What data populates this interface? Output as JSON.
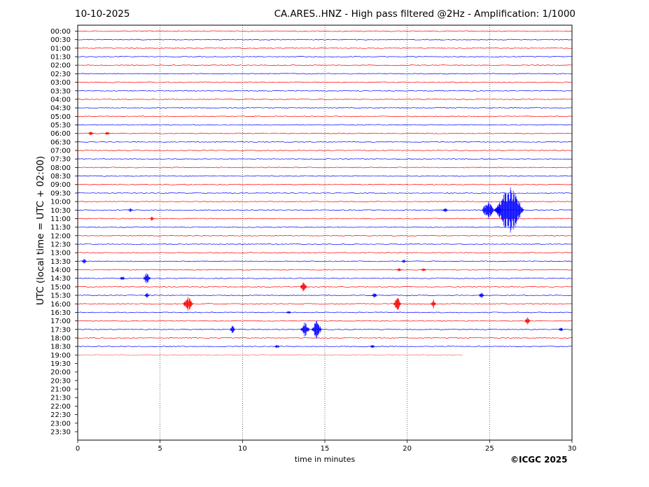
{
  "header": {
    "date": "10-10-2025",
    "title": "CA.ARES..HNZ - High pass filtered @2Hz - Amplification: 1/1000"
  },
  "credit": "©ICGC 2025",
  "chart_data": {
    "type": "line",
    "title": "CA.ARES..HNZ - High pass filtered @2Hz - Amplification: 1/1000",
    "xlabel": "time in minutes",
    "ylabel": "UTC (local time = UTC + 02:00)",
    "xlim": [
      0,
      30
    ],
    "xticks": [
      "0",
      "5",
      "10",
      "15",
      "20",
      "25",
      "30"
    ],
    "rows": [
      "00:00",
      "00:30",
      "01:00",
      "01:30",
      "02:00",
      "02:30",
      "03:00",
      "03:30",
      "04:00",
      "04:30",
      "05:00",
      "05:30",
      "06:00",
      "06:30",
      "07:00",
      "07:30",
      "08:00",
      "08:30",
      "09:00",
      "09:30",
      "10:00",
      "10:30",
      "11:00",
      "11:30",
      "12:00",
      "12:30",
      "13:00",
      "13:30",
      "14:00",
      "14:30",
      "15:00",
      "15:30",
      "16:00",
      "16:30",
      "17:00",
      "17:30",
      "18:00",
      "18:30",
      "19:00",
      "19:30",
      "20:00",
      "20:30",
      "21:00",
      "21:30",
      "22:00",
      "22:30",
      "23:00",
      "23:30"
    ],
    "last_trace": {
      "row": "19:00",
      "end_minute": 23.4
    },
    "colors": {
      "even_row": "#ff0000",
      "odd_row": "#0000ff"
    },
    "vertical_gridlines": [
      5,
      10,
      15,
      20,
      25
    ],
    "events": [
      {
        "row": "06:00",
        "minute": 0.8,
        "amp": 3
      },
      {
        "row": "06:00",
        "minute": 1.8,
        "amp": 3
      },
      {
        "row": "10:30",
        "minute": 3.2,
        "amp": 3
      },
      {
        "row": "10:30",
        "minute": 22.3,
        "amp": 4
      },
      {
        "row": "10:30",
        "minute": 24.9,
        "amp": 16
      },
      {
        "row": "10:30",
        "minute": 25.5,
        "amp": 10
      },
      {
        "row": "10:30",
        "minute": 26.2,
        "amp": 38
      },
      {
        "row": "11:00",
        "minute": 4.5,
        "amp": 3
      },
      {
        "row": "13:30",
        "minute": 0.4,
        "amp": 4
      },
      {
        "row": "13:30",
        "minute": 19.8,
        "amp": 3
      },
      {
        "row": "14:00",
        "minute": 19.5,
        "amp": 3
      },
      {
        "row": "14:00",
        "minute": 21.0,
        "amp": 3
      },
      {
        "row": "14:30",
        "minute": 2.7,
        "amp": 4
      },
      {
        "row": "14:30",
        "minute": 4.2,
        "amp": 10
      },
      {
        "row": "15:00",
        "minute": 13.7,
        "amp": 9
      },
      {
        "row": "15:30",
        "minute": 4.2,
        "amp": 4
      },
      {
        "row": "15:30",
        "minute": 18.0,
        "amp": 5
      },
      {
        "row": "15:30",
        "minute": 24.5,
        "amp": 5
      },
      {
        "row": "16:00",
        "minute": 6.7,
        "amp": 13
      },
      {
        "row": "16:00",
        "minute": 19.4,
        "amp": 11
      },
      {
        "row": "16:00",
        "minute": 21.6,
        "amp": 7
      },
      {
        "row": "16:30",
        "minute": 12.8,
        "amp": 3
      },
      {
        "row": "17:00",
        "minute": 27.3,
        "amp": 6
      },
      {
        "row": "17:30",
        "minute": 9.4,
        "amp": 7
      },
      {
        "row": "17:30",
        "minute": 13.8,
        "amp": 12
      },
      {
        "row": "17:30",
        "minute": 14.5,
        "amp": 14
      },
      {
        "row": "17:30",
        "minute": 29.3,
        "amp": 4
      },
      {
        "row": "18:30",
        "minute": 12.1,
        "amp": 3
      },
      {
        "row": "18:30",
        "minute": 17.9,
        "amp": 3
      }
    ]
  }
}
